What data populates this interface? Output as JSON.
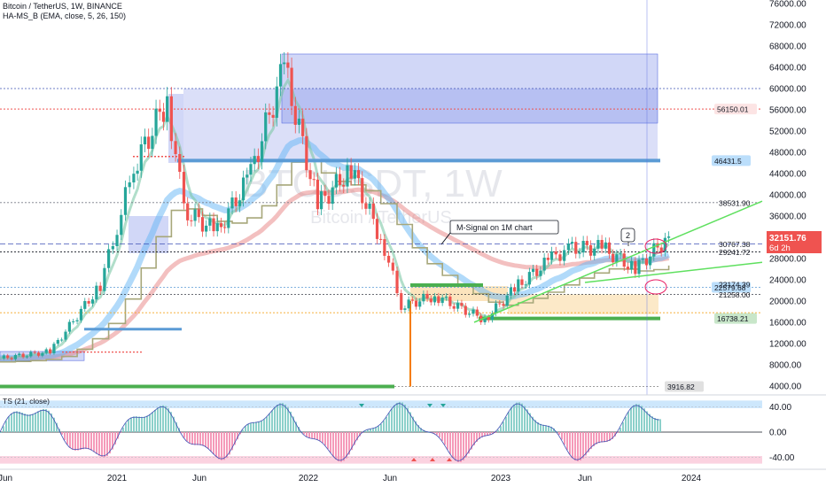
{
  "header": {
    "symbol_line": "Bitcoin / TetherUS, 1W, BINANCE",
    "indicator_line": "HA-MS_B (EMA, close, 5, 26, 150)"
  },
  "watermark": {
    "ticker": "BTCUSDT, 1W",
    "name": "Bitcoin / TetherUS"
  },
  "annotations": {
    "callout_text": "M-Signal on 1M chart",
    "marker_number": "2"
  },
  "colors": {
    "candle_up": "#26a69a",
    "candle_down": "#ef5350",
    "box_blue": "#5b6ee1",
    "ema_fast_green": "#7dc8a6",
    "ema_slow_blue": "#64b5f6",
    "ema_long_red": "#e57373",
    "msignal_olive": "#a7a77a",
    "trend_green": "#3ad63a",
    "last_price_bg": "#ef5350",
    "countdown_text": "#ffffff"
  },
  "price_axis": {
    "ticks": [
      "76000.00",
      "72000.00",
      "68000.00",
      "64000.00",
      "60000.00",
      "56000.00",
      "52000.00",
      "48000.00",
      "44000.00",
      "40000.00",
      "36000.00",
      "28000.00",
      "24000.00",
      "20000.00",
      "16000.00",
      "12000.00",
      "8000.00",
      "4000.00"
    ],
    "tags": [
      {
        "value": 56150.01,
        "label": "56150.01",
        "style": "red"
      },
      {
        "value": 46431.5,
        "label": "46431.5",
        "style": "blue"
      },
      {
        "value": 38531.9,
        "label": "38531.90",
        "style": "plain"
      },
      {
        "value": 30767.38,
        "label": "30767.38",
        "style": "plain"
      },
      {
        "value": 29241.72,
        "label": "29241.72",
        "style": "plain"
      },
      {
        "value": 22579.68,
        "label": "22579.68",
        "style": "blue"
      },
      {
        "value": 21258.0,
        "label": "21258.00",
        "style": "plain"
      },
      {
        "value": 23174.39,
        "label": "23174.39",
        "style": "plain"
      },
      {
        "value": 16738.21,
        "label": "16738.21",
        "style": "green"
      },
      {
        "value": 3916.82,
        "label": "3916.82",
        "style": "gray"
      }
    ],
    "last_price": "32151.76",
    "countdown": "6d 2h"
  },
  "time_axis": {
    "labels": [
      "Jun",
      "2021",
      "Jun",
      "2022",
      "Jun",
      "2023",
      "Jun",
      "2024"
    ]
  },
  "oscillator": {
    "title": "TS (21, close)",
    "ticks": [
      "40.00",
      "0.00",
      "-40.00"
    ]
  },
  "chart_data": {
    "type": "line",
    "title": "Bitcoin / TetherUS, 1W, BINANCE",
    "series_close": {
      "x": [
        "2020-06",
        "2020-09",
        "2020-12",
        "2021-01",
        "2021-02",
        "2021-04",
        "2021-05",
        "2021-07",
        "2021-09",
        "2021-11",
        "2022-01",
        "2022-03",
        "2022-05",
        "2022-06",
        "2022-08",
        "2022-11",
        "2023-01",
        "2023-03",
        "2023-04",
        "2023-06",
        "2023-08",
        "2023-10"
      ],
      "values": [
        9200,
        10500,
        23000,
        34000,
        45000,
        58000,
        37000,
        33000,
        44000,
        64000,
        38000,
        45000,
        30000,
        19000,
        21000,
        16500,
        23000,
        28000,
        30000,
        30000,
        26000,
        32151.76
      ]
    },
    "horizontal_levels": [
      60000,
      56150.01,
      46431.5,
      38531.9,
      30767.38,
      29241.72,
      22579.68,
      21258.0,
      16738.21,
      3916.82
    ],
    "oscillator_range": [
      -60,
      60
    ]
  }
}
